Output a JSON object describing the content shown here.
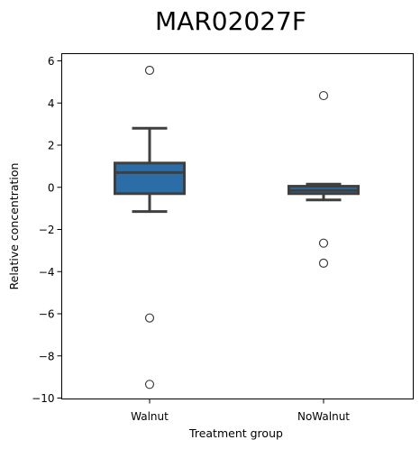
{
  "chart_data": {
    "type": "box",
    "title": "MAR02027F",
    "xlabel": "Treatment group",
    "ylabel": "Relative concentration",
    "categories": [
      "Walnut",
      "NoWalnut"
    ],
    "ylim": [
      -10.1,
      6.3
    ],
    "yticks": [
      -10,
      -8,
      -6,
      -4,
      -2,
      0,
      2,
      4,
      6
    ],
    "ytick_labels": [
      "−10",
      "−8",
      "−6",
      "−4",
      "−2",
      "0",
      "2",
      "4",
      "6"
    ],
    "grid": false,
    "legend": "none",
    "boxes": [
      {
        "category": "Walnut",
        "whisker_low": -1.15,
        "q1": -0.3,
        "median": 0.7,
        "q3": 1.15,
        "whisker_high": 2.8,
        "outliers": [
          5.55,
          -6.2,
          -9.35
        ],
        "color": "#2b6ea7"
      },
      {
        "category": "NoWalnut",
        "whisker_low": -0.6,
        "q1": -0.3,
        "median": -0.15,
        "q3": 0.05,
        "whisker_high": 0.15,
        "outliers": [
          4.35,
          -2.65,
          -3.6
        ],
        "color": "#2b6ea7"
      }
    ],
    "line_color": "#3f3f3f"
  }
}
